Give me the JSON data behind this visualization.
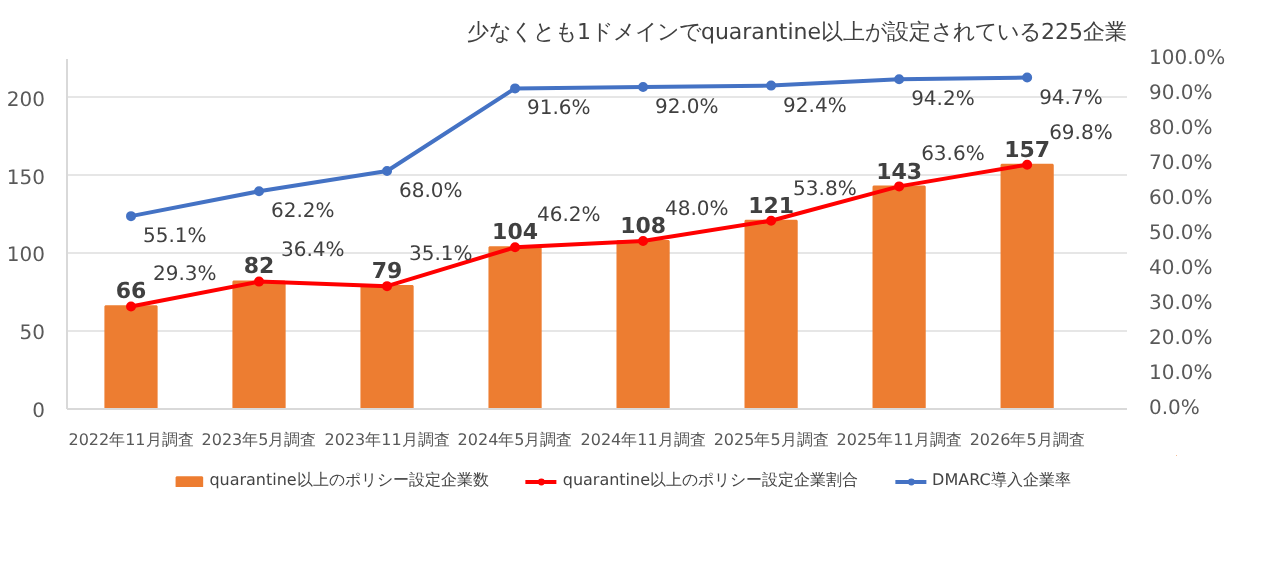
{
  "chart_data": {
    "type": "bar",
    "title": "少なくとも1ドメインでquarantine以上が設定されている225企業",
    "categories": [
      "2022年11月調査",
      "2023年5月調査",
      "2023年11月調査",
      "2024年5月調査",
      "2024年11月調査",
      "2025年5月調査",
      "2025年11月調査",
      "2026年5月調査"
    ],
    "series": [
      {
        "name": "quarantine以上のポリシー設定企業数",
        "type": "bar",
        "color": "#ed7d31",
        "values": [
          66,
          82,
          79,
          104,
          108,
          121,
          143,
          157
        ],
        "value_labels": [
          "66",
          "82",
          "79",
          "104",
          "108",
          "121",
          "143",
          "157"
        ]
      },
      {
        "name": "quarantine以上のポリシー設定企業割合",
        "type": "line",
        "axis": "y2",
        "color": "#ff0000",
        "values": [
          29.3,
          36.4,
          35.1,
          46.2,
          48.0,
          53.8,
          63.6,
          69.8
        ],
        "value_labels": [
          "29.3%",
          "36.4%",
          "35.1%",
          "46.2%",
          "48.0%",
          "53.8%",
          "63.6%",
          "69.8%"
        ]
      },
      {
        "name": "DMARC導入企業率",
        "type": "line",
        "axis": "y2",
        "color": "#4472c4",
        "values": [
          55.1,
          62.2,
          68.0,
          91.6,
          92.0,
          92.4,
          94.2,
          94.7
        ],
        "value_labels": [
          "55.1%",
          "62.2%",
          "68.0%",
          "91.6%",
          "92.0%",
          "92.4%",
          "94.2%",
          "94.7%"
        ]
      }
    ],
    "ylim": [
      0,
      225
    ],
    "yticks": [
      0,
      50,
      100,
      150,
      200
    ],
    "y2lim": [
      0,
      100
    ],
    "y2ticks": [
      {
        "value": 0,
        "label": "0.0%"
      },
      {
        "value": 10,
        "label": "10.0%"
      },
      {
        "value": 20,
        "label": "20.0%"
      },
      {
        "value": 30,
        "label": "30.0%"
      },
      {
        "value": 40,
        "label": "40.0%"
      },
      {
        "value": 50,
        "label": "50.0%"
      },
      {
        "value": 60,
        "label": "60.0%"
      },
      {
        "value": 70,
        "label": "70.0%"
      },
      {
        "value": 80,
        "label": "80.0%"
      },
      {
        "value": 90,
        "label": "90.0%"
      },
      {
        "value": 100,
        "label": "100.0%"
      }
    ],
    "grid": "y",
    "legend": "bottom",
    "marker": "circle"
  }
}
